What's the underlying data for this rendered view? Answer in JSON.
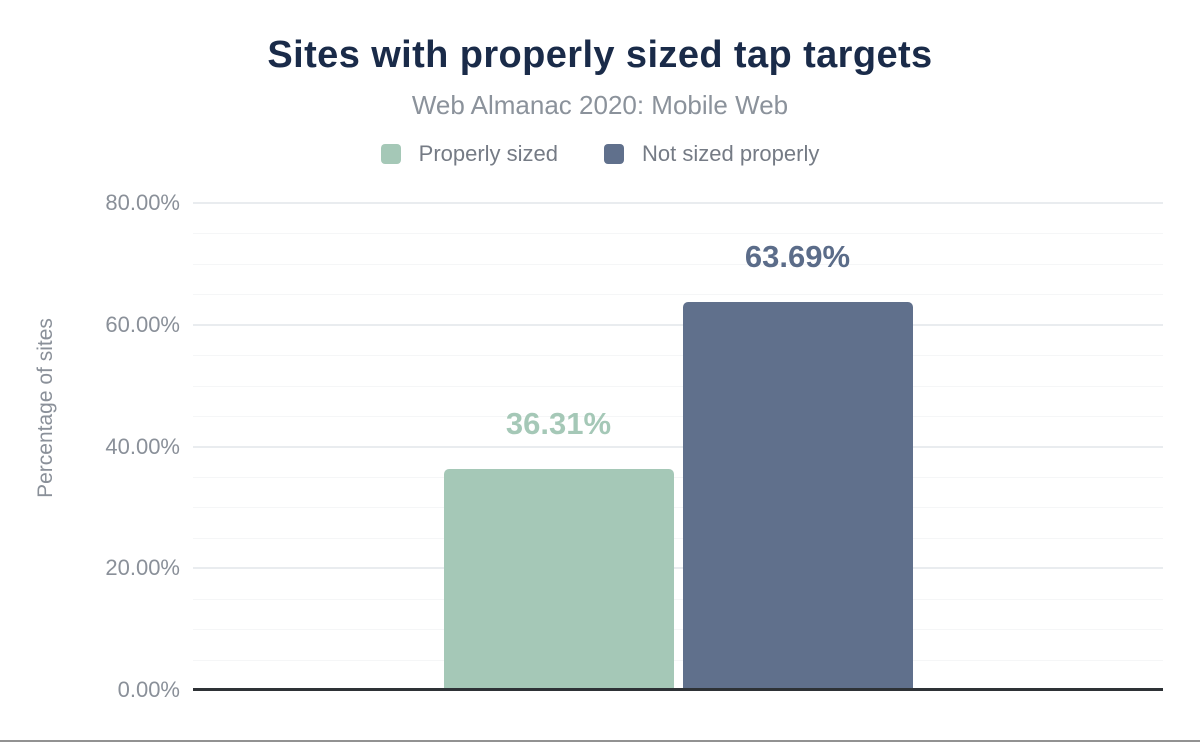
{
  "chart_data": {
    "type": "bar",
    "title": "Sites with properly sized tap targets",
    "subtitle": "Web Almanac 2020: Mobile Web",
    "ylabel": "Percentage of sites",
    "ylim": [
      0,
      80
    ],
    "grid_minor_step": 5,
    "grid_major_step": 20,
    "grid": true,
    "legend_position": "top",
    "yticks": [
      {
        "value": 0,
        "label": "0.00%"
      },
      {
        "value": 20,
        "label": "20.00%"
      },
      {
        "value": 40,
        "label": "40.00%"
      },
      {
        "value": 60,
        "label": "60.00%"
      },
      {
        "value": 80,
        "label": "80.00%"
      }
    ],
    "series": [
      {
        "name": "Properly sized",
        "value": 36.31,
        "label": "36.31%",
        "color": "#a5c8b7",
        "label_color": "#a5c8b7"
      },
      {
        "name": "Not sized properly",
        "value": 63.69,
        "label": "63.69%",
        "color": "#60708c",
        "label_color": "#5b6c89"
      }
    ]
  },
  "colors": {
    "brand_navy": "#1a2b49",
    "subtitle_gray": "#8b929b",
    "axis_text_gray": "#8a9099",
    "baseline": "#2e3236",
    "page_bottom_line": "#929292"
  }
}
